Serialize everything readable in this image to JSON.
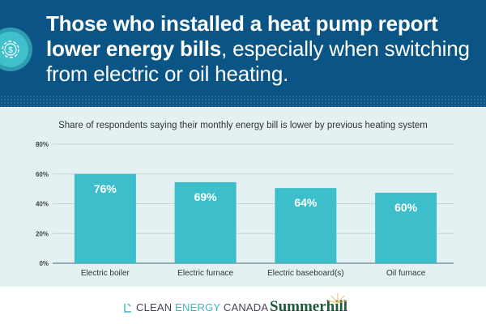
{
  "header": {
    "title_bold": "Those who installed a heat pump report lower energy bills",
    "title_rest": ", especially when switching from electric or oil heating.",
    "icon": "gear-dollar-icon",
    "colors": {
      "background": "#0b5586",
      "icon": "#3fc0cc"
    }
  },
  "chart_data": {
    "type": "bar",
    "title": "Share of respondents saying their monthly energy bill is lower by previous heating system",
    "categories": [
      "Electric boiler",
      "Electric furnace",
      "Electric baseboard(s)",
      "Oil furnace"
    ],
    "values": [
      76,
      69,
      64,
      60
    ],
    "value_labels": [
      "76%",
      "69%",
      "64%",
      "60%"
    ],
    "yticks": [
      "0%",
      "20%",
      "40%",
      "60%",
      "80%"
    ],
    "xlabel": "",
    "ylabel": "",
    "ylim": [
      0,
      80
    ],
    "grid": true,
    "bar_color": "#3dbfcb"
  },
  "footer": {
    "logo1_a": "CLEAN ",
    "logo1_b": "ENERGY",
    "logo1_c": " CANADA",
    "logo2": "Summerhill"
  }
}
